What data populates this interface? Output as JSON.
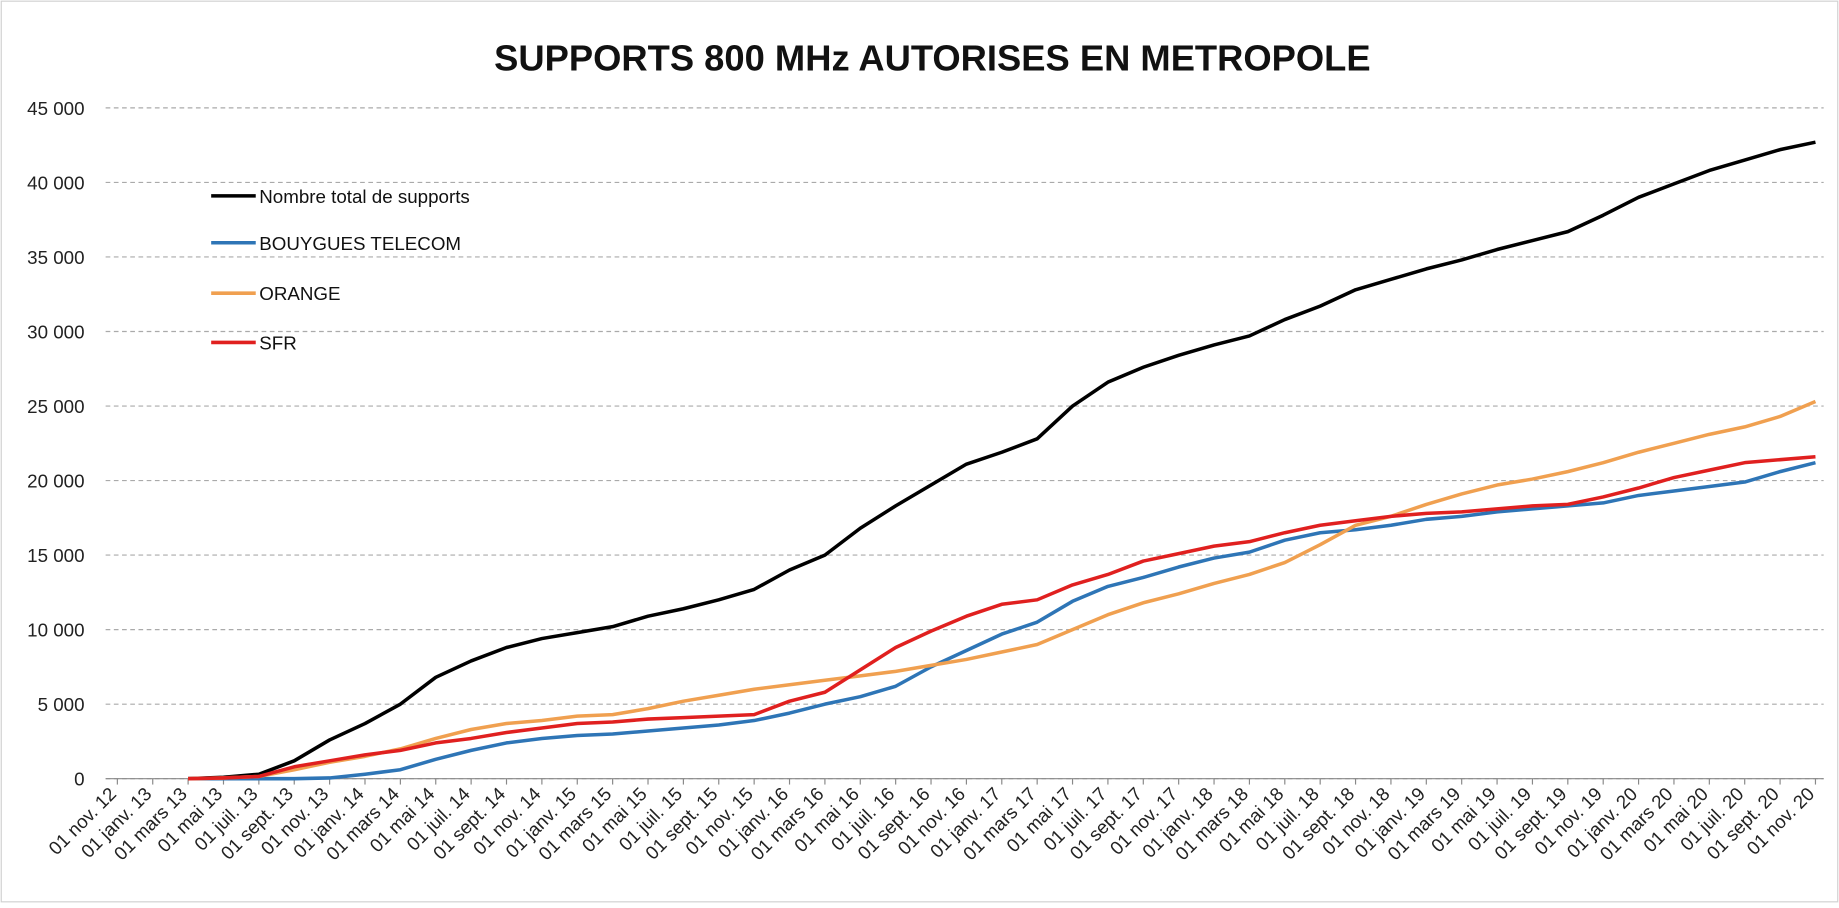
{
  "chart_data": {
    "type": "line",
    "title": "SUPPORTS 800 MHz AUTORISES EN METROPOLE",
    "categories": [
      "01 nov. 12",
      "01 janv. 13",
      "01 mars 13",
      "01 mai 13",
      "01 juil. 13",
      "01 sept. 13",
      "01 nov. 13",
      "01 janv. 14",
      "01 mars 14",
      "01 mai 14",
      "01 juil. 14",
      "01 sept. 14",
      "01 nov. 14",
      "01 janv. 15",
      "01 mars 15",
      "01 mai 15",
      "01 juil. 15",
      "01 sept. 15",
      "01 nov. 15",
      "01 janv. 16",
      "01 mars 16",
      "01 mai 16",
      "01 juil. 16",
      "01 sept. 16",
      "01 nov. 16",
      "01 janv. 17",
      "01 mars 17",
      "01 mai 17",
      "01 juil. 17",
      "01 sept. 17",
      "01 nov. 17",
      "01 janv. 18",
      "01 mars 18",
      "01 mai 18",
      "01 juil. 18",
      "01 sept. 18",
      "01 nov. 18",
      "01 janv. 19",
      "01 mars 19",
      "01 mai 19",
      "01 juil. 19",
      "01 sept. 19",
      "01 nov. 19",
      "01 janv. 20",
      "01 mars 20",
      "01 mai 20",
      "01 juil. 20",
      "01 sept. 20",
      "01 nov. 20"
    ],
    "series": [
      {
        "name": "Nombre total de supports",
        "color": "#000000",
        "values": [
          null,
          null,
          0,
          100,
          300,
          1200,
          2600,
          3700,
          5000,
          6800,
          7900,
          8800,
          9400,
          9800,
          10200,
          10900,
          11400,
          12000,
          12700,
          14000,
          15000,
          16800,
          18300,
          19700,
          21100,
          21900,
          22800,
          25000,
          26600,
          27600,
          28400,
          29100,
          29700,
          30800,
          31700,
          32800,
          33500,
          34200,
          34800,
          35500,
          36100,
          36700,
          37800,
          39000,
          39900,
          40800,
          41500,
          42200,
          42700
        ]
      },
      {
        "name": "BOUYGUES TELECOM",
        "color": "#2e75b6",
        "values": [
          null,
          null,
          0,
          0,
          0,
          0,
          50,
          300,
          600,
          1300,
          1900,
          2400,
          2700,
          2900,
          3000,
          3200,
          3400,
          3600,
          3900,
          4400,
          5000,
          5500,
          6200,
          7500,
          8600,
          9700,
          10500,
          11900,
          12900,
          13500,
          14200,
          14800,
          15200,
          16000,
          16500,
          16700,
          17000,
          17400,
          17600,
          17900,
          18100,
          18300,
          18500,
          19000,
          19300,
          19600,
          19900,
          20600,
          21200
        ]
      },
      {
        "name": "ORANGE",
        "color": "#f0a050",
        "values": [
          null,
          null,
          0,
          50,
          150,
          600,
          1100,
          1500,
          2000,
          2700,
          3300,
          3700,
          3900,
          4200,
          4300,
          4700,
          5200,
          5600,
          6000,
          6300,
          6600,
          6900,
          7200,
          7600,
          8000,
          8500,
          9000,
          10000,
          11000,
          11800,
          12400,
          13100,
          13700,
          14500,
          15700,
          17000,
          17600,
          18400,
          19100,
          19700,
          20100,
          20600,
          21200,
          21900,
          22500,
          23100,
          23600,
          24300,
          25300
        ]
      },
      {
        "name": "SFR",
        "color": "#e0201f",
        "values": [
          null,
          null,
          0,
          50,
          150,
          800,
          1200,
          1600,
          1900,
          2400,
          2700,
          3100,
          3400,
          3700,
          3800,
          4000,
          4100,
          4200,
          4300,
          5200,
          5800,
          7300,
          8800,
          9900,
          10900,
          11700,
          12000,
          13000,
          13700,
          14600,
          15100,
          15600,
          15900,
          16500,
          17000,
          17300,
          17600,
          17800,
          17900,
          18100,
          18300,
          18400,
          18900,
          19500,
          20200,
          20700,
          21200,
          21400,
          21600
        ]
      }
    ],
    "ylim": [
      0,
      45000
    ],
    "yticks": [
      0,
      {
        "value": 5000,
        "label": "5 000"
      },
      {
        "value": 10000,
        "label": "10 000"
      },
      {
        "value": 15000,
        "label": "15 000"
      },
      {
        "value": 20000,
        "label": "20 000"
      },
      {
        "value": 25000,
        "label": "25 000"
      },
      {
        "value": 30000,
        "label": "30 000"
      },
      {
        "value": 35000,
        "label": "35 000"
      },
      {
        "value": 40000,
        "label": "40 000"
      },
      {
        "value": 45000,
        "label": "45 000"
      }
    ],
    "grid": true,
    "legend": "upper-left"
  }
}
